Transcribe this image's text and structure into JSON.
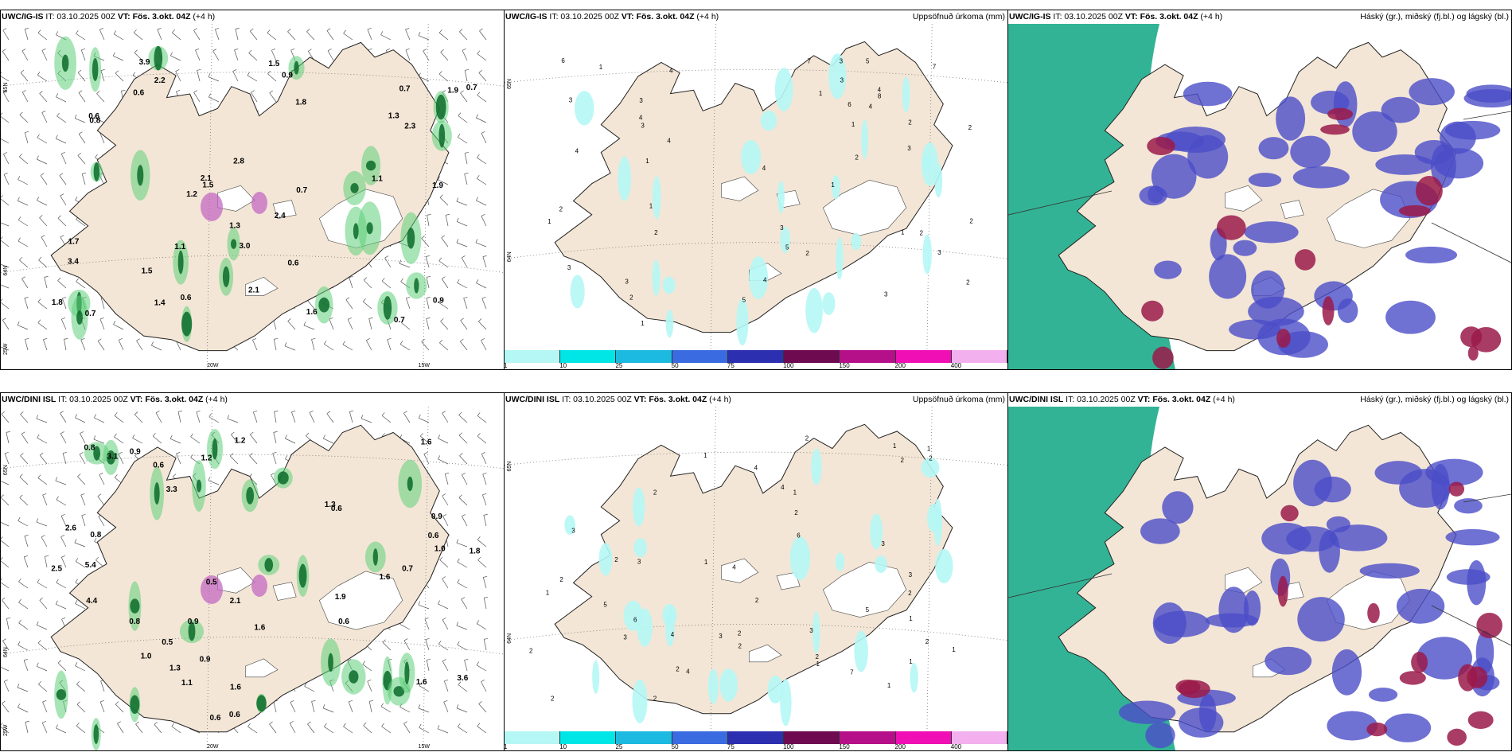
{
  "panels": [
    {
      "id": "top-left",
      "model": "UWC/IG-IS",
      "it_label": "IT:",
      "it_value": "03.10.2025 00Z",
      "vt_label": "VT:",
      "vt_value": "Fös. 3.okt. 04Z",
      "lead": "(+4 h)",
      "right_title": "",
      "values": [
        "0.6",
        "1.9",
        "1.5",
        "0.7",
        "3.4",
        "0.8",
        "0.7",
        "1.4",
        "1.1",
        "1.9",
        "1.3",
        "2.2",
        "0.6",
        "0.7",
        "0.6",
        "0.9",
        "0.7",
        "2.3",
        "1.5",
        "1.6",
        "1.7",
        "2.1",
        "1.1",
        "2.8",
        "1.3",
        "0.9",
        "1.5",
        "1.8",
        "1.2",
        "0.7",
        "2.4",
        "3.0",
        "2.1",
        "3.9",
        "0.6",
        "1.8"
      ],
      "coords": [
        "65N",
        "64N",
        "20W",
        "15W",
        "25W"
      ]
    },
    {
      "id": "top-mid",
      "model": "UWC/IG-IS",
      "it_label": "IT:",
      "it_value": "03.10.2025 00Z",
      "vt_label": "VT:",
      "vt_value": "Fös. 3.okt. 04Z",
      "lead": "(+4 h)",
      "right_title": "Uppsöfnuð úrkoma (mm)",
      "values": [
        "1",
        "3",
        "2",
        "1",
        "2",
        "3",
        "3",
        "2",
        "3",
        "4",
        "1",
        "4",
        "5",
        "4",
        "2",
        "4",
        "1",
        "1",
        "3",
        "4",
        "5",
        "2",
        "3",
        "2",
        "2",
        "1",
        "3",
        "4",
        "2",
        "5",
        "1",
        "7",
        "3",
        "7",
        "2",
        "6",
        "8",
        "1",
        "2",
        "1",
        "4",
        "4",
        "3",
        "3",
        "6",
        "3"
      ],
      "coords": [
        "65N",
        "64N"
      ],
      "colorbar": [
        {
          "label": "1",
          "color": "#b5f7f5"
        },
        {
          "label": "10",
          "color": "#00e5e5"
        },
        {
          "label": "25",
          "color": "#1cb9e0"
        },
        {
          "label": "50",
          "color": "#3a6be0"
        },
        {
          "label": "75",
          "color": "#2b2fb0"
        },
        {
          "label": "100",
          "color": "#6e0a50"
        },
        {
          "label": "150",
          "color": "#b5108a"
        },
        {
          "label": "200",
          "color": "#ef0fb4"
        },
        {
          "label": "400",
          "color": "#f2b0ee"
        }
      ]
    },
    {
      "id": "top-right",
      "model": "UWC/IG-IS",
      "it_label": "IT:",
      "it_value": "03.10.2025 00Z",
      "vt_label": "VT:",
      "vt_value": "Fös. 3.okt. 04Z",
      "lead": "(+4 h)",
      "right_title": "Háský (gr.), miðský (fj.bl.) og lágský (bl.)"
    },
    {
      "id": "bot-left",
      "model": "UWC/DINI ISL",
      "it_label": "IT:",
      "it_value": "03.10.2025 00Z",
      "vt_label": "VT:",
      "vt_value": "Fös. 3.okt. 04Z",
      "lead": "(+4 h)",
      "right_title": "",
      "values": [
        "0.9",
        "0.6",
        "0.8",
        "0.5",
        "1.6",
        "0.9",
        "1.3",
        "0.9",
        "1.3",
        "1.6",
        "1.0",
        "1.6",
        "0.8",
        "0.6",
        "0.7",
        "0.6",
        "0.5",
        "1.0",
        "1.2",
        "0.8",
        "0.6",
        "1.6",
        "3.3",
        "1.9",
        "1.8",
        "4.4",
        "2.5",
        "1.2",
        "3.6",
        "1.6",
        "1.1",
        "2.6",
        "2.1",
        "3.1",
        "0.6",
        "5.4",
        "0.9",
        "0.6"
      ],
      "coords": [
        "65N",
        "64N",
        "20W",
        "15W",
        "25W"
      ]
    },
    {
      "id": "bot-mid",
      "model": "UWC/DINI ISL",
      "it_label": "IT:",
      "it_value": "03.10.2025 00Z",
      "vt_label": "VT:",
      "vt_value": "Fös. 3.okt. 04Z",
      "lead": "(+4 h)",
      "right_title": "Uppsöfnuð úrkoma (mm)",
      "values": [
        "1",
        "2",
        "1",
        "2",
        "1",
        "1",
        "2",
        "2",
        "3",
        "1",
        "2",
        "2",
        "2",
        "1",
        "4",
        "2",
        "2",
        "3",
        "2",
        "3",
        "1",
        "2",
        "4",
        "2",
        "1",
        "4",
        "2",
        "3",
        "4",
        "1",
        "2",
        "6",
        "5",
        "2",
        "2",
        "3",
        "2",
        "7",
        "3",
        "1",
        "1",
        "3",
        "5",
        "6",
        "4"
      ],
      "coords": [
        "65N",
        "64N"
      ],
      "colorbar": [
        {
          "label": "1",
          "color": "#b5f7f5"
        },
        {
          "label": "10",
          "color": "#00e5e5"
        },
        {
          "label": "25",
          "color": "#1cb9e0"
        },
        {
          "label": "50",
          "color": "#3a6be0"
        },
        {
          "label": "75",
          "color": "#2b2fb0"
        },
        {
          "label": "100",
          "color": "#6e0a50"
        },
        {
          "label": "150",
          "color": "#b5108a"
        },
        {
          "label": "200",
          "color": "#ef0fb4"
        },
        {
          "label": "400",
          "color": "#f2b0ee"
        }
      ]
    },
    {
      "id": "bot-right",
      "model": "UWC/DINI ISL",
      "it_label": "IT:",
      "it_value": "03.10.2025 00Z",
      "vt_label": "VT:",
      "vt_value": "Fös. 3.okt. 04Z",
      "lead": "(+4 h)",
      "right_title": "Háský (gr.), miðský (fj.bl.) og lágský (bl.)"
    }
  ],
  "colors": {
    "land": "#f3e6d6",
    "glacier": "#ffffff",
    "precip_green": "#5fcf7a",
    "precip_dark": "#0a6b2a",
    "snow": "#c060c0",
    "cloud_high": "#00a07a",
    "cloud_mid": "#4b4ec8",
    "cloud_low": "#9a1a4a",
    "precip_cyan": "#b5f7f5"
  }
}
